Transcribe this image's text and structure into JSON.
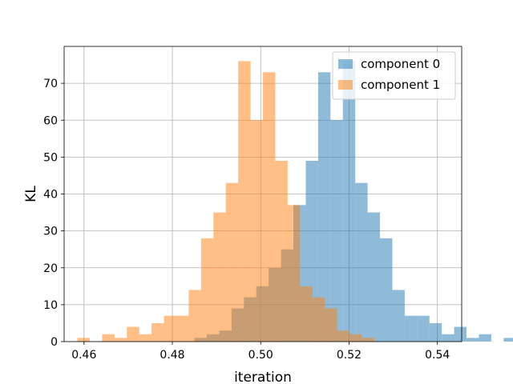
{
  "chart_data": {
    "type": "bar",
    "title": "",
    "xlabel": "iteration",
    "ylabel": "KL",
    "xlim": [
      0.4555,
      0.5455
    ],
    "ylim": [
      0,
      80
    ],
    "xticks": [
      "0.46",
      "0.48",
      "0.50",
      "0.52",
      "0.54"
    ],
    "xtick_values": [
      0.46,
      0.48,
      0.5,
      0.52,
      0.54
    ],
    "yticks": [
      "0",
      "10",
      "20",
      "30",
      "40",
      "50",
      "60",
      "70"
    ],
    "ytick_values": [
      0,
      10,
      20,
      30,
      40,
      50,
      60,
      70
    ],
    "grid": true,
    "legend_position": "top-right",
    "bar_alpha": 0.5,
    "series": [
      {
        "name": "component 0",
        "color": "#1f77b4",
        "bin_start": 0.485,
        "bin_width": 0.0028,
        "values": [
          1,
          2,
          3,
          9,
          12,
          15,
          20,
          25,
          37,
          49,
          73,
          60,
          76,
          43,
          35,
          28,
          14,
          7,
          7,
          5,
          2,
          4,
          1,
          2,
          0,
          1
        ]
      },
      {
        "name": "component 1",
        "color": "#ff7f0e",
        "bin_start": 0.4585,
        "bin_width": 0.0028,
        "values": [
          1,
          0,
          2,
          1,
          4,
          2,
          5,
          7,
          7,
          14,
          28,
          35,
          43,
          76,
          60,
          73,
          49,
          37,
          15,
          12,
          9,
          3,
          2,
          1
        ]
      }
    ]
  }
}
